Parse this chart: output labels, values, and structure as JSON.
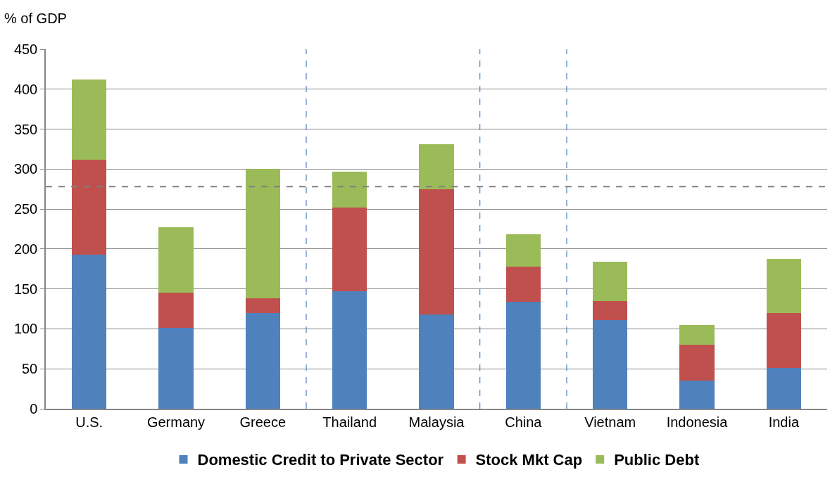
{
  "chart_data": {
    "type": "bar",
    "stacked": true,
    "ylabel": "% of GDP",
    "categories": [
      "U.S.",
      "Germany",
      "Greece",
      "Thailand",
      "Malaysia",
      "China",
      "Vietnam",
      "Indonesia",
      "India"
    ],
    "series": [
      {
        "name": "Domestic Credit to Private Sector",
        "color": "#4f81bd",
        "values": [
          193,
          101,
          120,
          147,
          118,
          134,
          111,
          35,
          51
        ]
      },
      {
        "name": "Stock Mkt Cap",
        "color": "#c0504d",
        "values": [
          119,
          44,
          18,
          105,
          157,
          44,
          24,
          45,
          69
        ]
      },
      {
        "name": "Public Debt",
        "color": "#9bbb59",
        "values": [
          100,
          82,
          162,
          45,
          56,
          40,
          49,
          25,
          68
        ]
      }
    ],
    "ylim": [
      0,
      450
    ],
    "yticks": [
      0,
      50,
      100,
      150,
      200,
      250,
      300,
      350,
      400,
      450
    ],
    "grid": "y",
    "legend": "bottom",
    "ref_lines": [
      {
        "axis": "y",
        "value": 278,
        "color": "#808080",
        "line_style": "dashed"
      }
    ]
  }
}
